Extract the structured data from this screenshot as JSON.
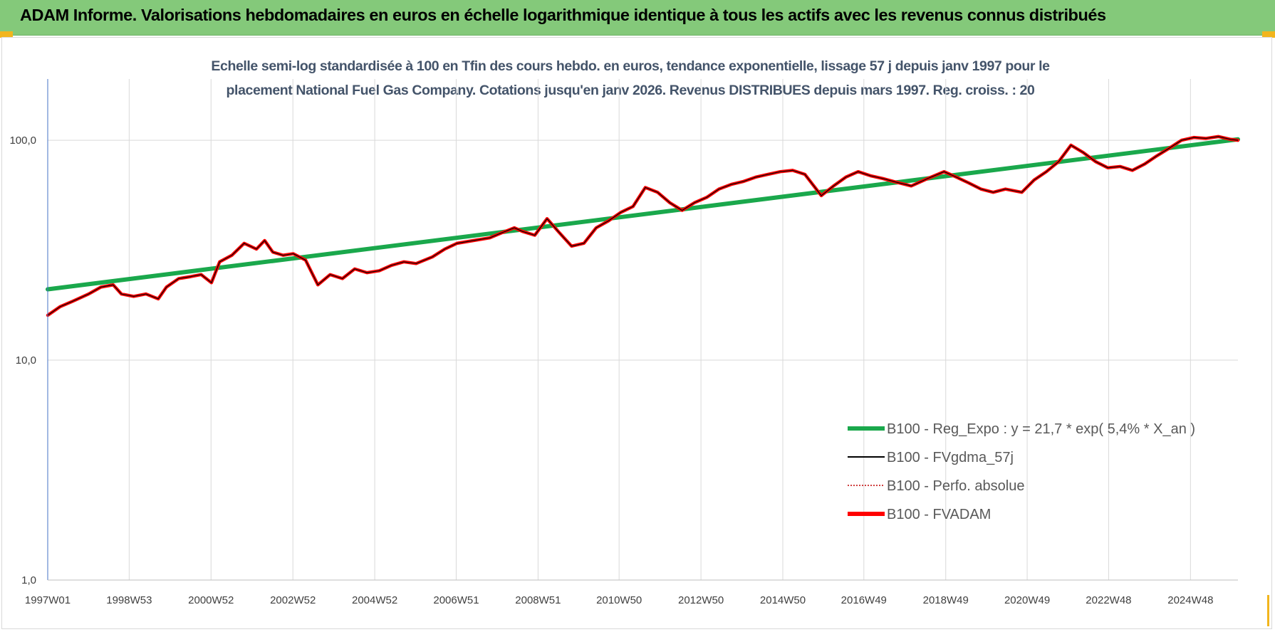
{
  "banner": {
    "title": "ADAM Informe. Valorisations hebdomadaires en euros en échelle logarithmique identique à tous les actifs avec les revenus connus distribués"
  },
  "colors": {
    "banner": "#84c97a",
    "accent_marks": "#f2b51d",
    "regression": "#1aa84c",
    "moving_average": "#000000",
    "perf_absolue": "#c00000",
    "fvadam": "#ff0000",
    "subtitle": "#44546a"
  },
  "chart_data": {
    "type": "line",
    "title": "Echelle semi-log standardisée à 100 en Tfin des cours hebdo. en euros, tendance exponentielle, lissage 57 j depuis janv 1997 pour le placement National Fuel Gas Company. Cotations jusqu'en janv 2026.  Revenus DISTRIBUES depuis mars 1997. Reg. croiss. : 20",
    "title_lines": [
      "Echelle semi-log standardisée à 100 en Tfin des cours hebdo. en euros, tendance exponentielle, lissage 57 j depuis janv 1997 pour le",
      "placement National Fuel Gas Company. Cotations jusqu'en janv 2026.  Revenus DISTRIBUES depuis mars 1997. Reg. croiss. : 20"
    ],
    "y_scale": "log",
    "ylim": [
      1,
      190
    ],
    "y_ticks": [
      1,
      10,
      100
    ],
    "y_tick_labels": [
      "1,0",
      "10,0",
      "100,0"
    ],
    "xlim": [
      1997.0,
      2026.08
    ],
    "x_ticks": [
      1997.0,
      1998.99,
      2000.99,
      2002.99,
      2004.99,
      2006.98,
      2008.98,
      2010.96,
      2012.96,
      2014.96,
      2016.94,
      2018.94,
      2020.93,
      2022.92,
      2024.92
    ],
    "x_tick_labels": [
      "1997W01",
      "1998W53",
      "2000W52",
      "2002W52",
      "2004W52",
      "2006W51",
      "2008W51",
      "2010W50",
      "2012W50",
      "2014W50",
      "2016W49",
      "2018W49",
      "2020W49",
      "2022W48",
      "2024W48"
    ],
    "grid": {
      "vertical": true,
      "horizontal": true
    },
    "legend_position": "bottom-right",
    "series": [
      {
        "name": "B100 - Reg_Expo : y = 21,7 * exp( 5,4% *  X_an )",
        "style": "thick-line",
        "x": [
          1997.0,
          2026.08
        ],
        "y": [
          21.0,
          101.0
        ]
      },
      {
        "name": "B100 - FVgdma_57j",
        "style": "thin-line"
      },
      {
        "name": "B100 - Perfo. absolue",
        "style": "dotted-line"
      },
      {
        "name": "B100 - FVADAM",
        "style": "thick-line",
        "x": [
          1997.0,
          1997.3,
          1997.6,
          1998.0,
          1998.3,
          1998.6,
          1998.8,
          1999.1,
          1999.4,
          1999.7,
          1999.9,
          2000.2,
          2000.5,
          2000.75,
          2001.0,
          2001.2,
          2001.5,
          2001.8,
          2002.1,
          2002.3,
          2002.5,
          2002.75,
          2003.0,
          2003.3,
          2003.6,
          2003.9,
          2004.2,
          2004.5,
          2004.8,
          2005.1,
          2005.4,
          2005.7,
          2006.0,
          2006.4,
          2006.7,
          2007.0,
          2007.4,
          2007.8,
          2008.1,
          2008.4,
          2008.6,
          2008.9,
          2009.2,
          2009.5,
          2009.8,
          2010.1,
          2010.4,
          2010.7,
          2011.0,
          2011.3,
          2011.6,
          2011.9,
          2012.2,
          2012.5,
          2012.8,
          2013.1,
          2013.4,
          2013.7,
          2014.0,
          2014.3,
          2014.6,
          2014.9,
          2015.2,
          2015.5,
          2015.9,
          2016.2,
          2016.5,
          2016.8,
          2017.1,
          2017.4,
          2017.8,
          2018.1,
          2018.5,
          2018.9,
          2019.2,
          2019.5,
          2019.8,
          2020.1,
          2020.4,
          2020.8,
          2021.1,
          2021.4,
          2021.7,
          2022.0,
          2022.3,
          2022.6,
          2022.9,
          2023.2,
          2023.5,
          2023.8,
          2024.1,
          2024.4,
          2024.7,
          2025.0,
          2025.3,
          2025.6,
          2025.9,
          2026.08
        ],
        "y": [
          16.0,
          17.5,
          18.5,
          20.0,
          21.5,
          22.0,
          20.0,
          19.5,
          20.0,
          19.0,
          21.5,
          23.5,
          24.0,
          24.5,
          22.5,
          28.0,
          30.0,
          34.0,
          32.0,
          35.0,
          31.0,
          30.0,
          30.5,
          28.5,
          22.0,
          24.5,
          23.5,
          26.0,
          25.0,
          25.5,
          27.0,
          28.0,
          27.5,
          29.5,
          32.0,
          34.0,
          35.0,
          36.0,
          38.0,
          40.0,
          38.5,
          37.0,
          44.0,
          38.0,
          33.0,
          34.0,
          40.0,
          43.0,
          47.0,
          50.0,
          61.0,
          58.0,
          52.0,
          48.0,
          52.0,
          55.0,
          60.0,
          63.0,
          65.0,
          68.0,
          70.0,
          72.0,
          73.0,
          70.0,
          56.0,
          62.0,
          68.0,
          72.0,
          69.0,
          67.0,
          64.0,
          62.0,
          67.0,
          72.0,
          68.0,
          64.0,
          60.0,
          58.0,
          60.0,
          58.0,
          66.0,
          72.0,
          80.0,
          95.0,
          88.0,
          80.0,
          75.0,
          76.0,
          73.0,
          78.0,
          85.0,
          92.0,
          100.0,
          103.0,
          102.0,
          104.0,
          101.0,
          100.0
        ]
      }
    ]
  }
}
